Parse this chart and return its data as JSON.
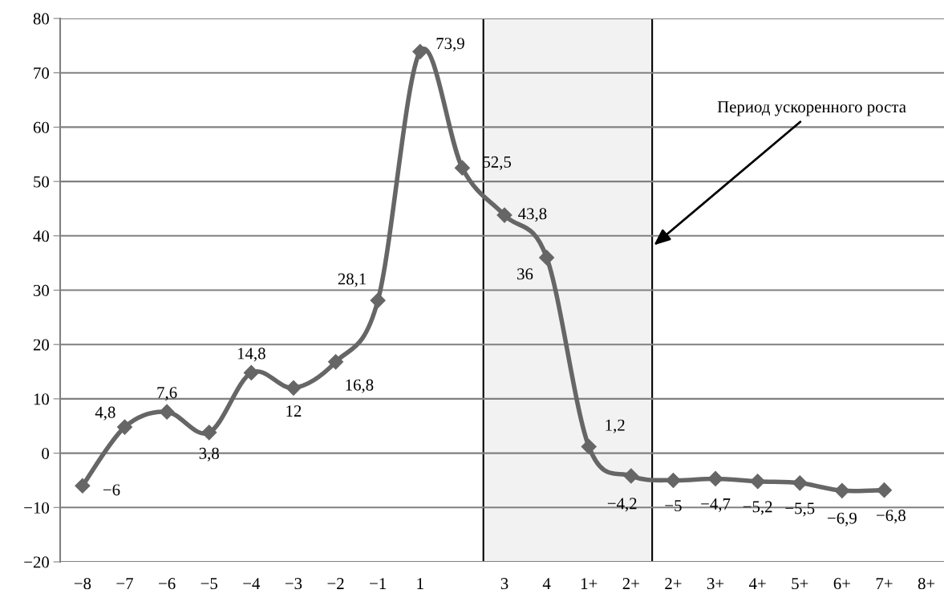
{
  "chart_data": {
    "type": "line",
    "categories": [
      "−8",
      "−7",
      "−6",
      "−5",
      "−4",
      "−3",
      "−2",
      "−1",
      "1",
      null,
      "3",
      "4",
      "1+",
      "2+",
      "2+",
      "3+",
      "4+",
      "5+",
      "6+",
      "7+",
      "8+"
    ],
    "series": [
      {
        "color": "#666666",
        "values": [
          -6,
          4.8,
          7.6,
          3.8,
          14.8,
          12,
          16.8,
          28.1,
          73.9,
          52.5,
          43.8,
          36,
          1.2,
          -4.2,
          -5,
          -4.7,
          -5.2,
          -5.5,
          -6.9,
          -6.8,
          null
        ],
        "value_labels": [
          "−6",
          "4,8",
          "7,6",
          "3,8",
          "14,8",
          "12",
          "16,8",
          "28,1",
          "73,9",
          "52,5",
          "43,8",
          "36",
          "1,2",
          "−4,2",
          "−5",
          "−4,7",
          "−5,2",
          "−5,5",
          "−6,9",
          "−6,8",
          null
        ]
      }
    ],
    "ylim": [
      -20,
      80
    ],
    "yticks": [
      {
        "value": -20,
        "label": "−20"
      },
      {
        "value": -10,
        "label": "−10"
      },
      0,
      10,
      20,
      30,
      40,
      50,
      60,
      70,
      80
    ],
    "grid": "y",
    "marker": "diamond",
    "line_style": "solid",
    "bands": [
      {
        "axis": "x",
        "from": "3",
        "to": "2+",
        "color": "#f2f2f2"
      }
    ],
    "annotations": [
      "Период ускоренного роста"
    ]
  }
}
